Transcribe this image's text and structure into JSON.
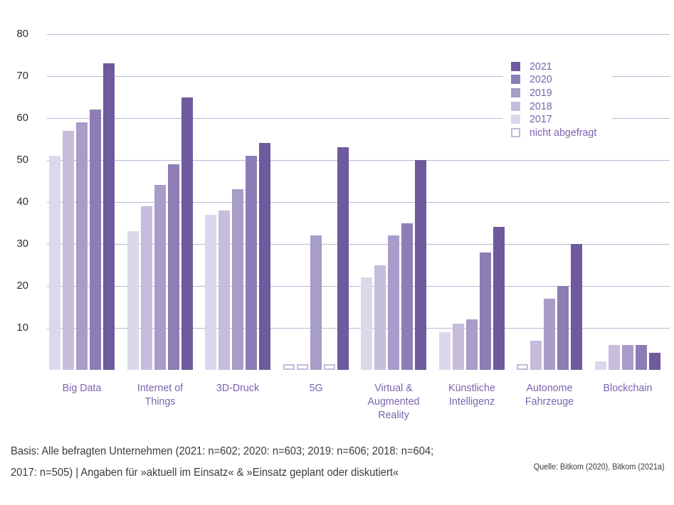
{
  "chart_data": {
    "type": "bar",
    "title": "",
    "unit": "percent",
    "ylim": [
      0,
      80
    ],
    "y_ticks": [
      10,
      20,
      30,
      40,
      50,
      60,
      70,
      80
    ],
    "grid": true,
    "legend_position": "top-right",
    "not_asked_label": "nicht abgefragt",
    "not_asked_note": "null values are rendered as small white outlined boxes (nicht abgefragt)",
    "categories": [
      {
        "id": "big-data",
        "lines": [
          "Big Data"
        ]
      },
      {
        "id": "internet-of-things",
        "lines": [
          "Internet of",
          "Things"
        ]
      },
      {
        "id": "3d-druck",
        "lines": [
          "3D-Druck"
        ]
      },
      {
        "id": "5g",
        "lines": [
          "5G"
        ]
      },
      {
        "id": "virtual-augmented-reality",
        "lines": [
          "Virtual &",
          "Augmented",
          "Reality"
        ]
      },
      {
        "id": "kuenstliche-intelligenz",
        "lines": [
          "Künstliche",
          "Intelligenz"
        ]
      },
      {
        "id": "autonome-fahrzeuge",
        "lines": [
          "Autonome",
          "Fahrzeuge"
        ]
      },
      {
        "id": "blockchain",
        "lines": [
          "Blockchain"
        ]
      }
    ],
    "series": [
      {
        "name": "2017",
        "color": "#dcd8eb",
        "values": [
          51,
          33,
          37,
          null,
          22,
          9,
          null,
          2
        ]
      },
      {
        "name": "2018",
        "color": "#c6bddd",
        "values": [
          57,
          39,
          38,
          null,
          25,
          11,
          7,
          6
        ]
      },
      {
        "name": "2019",
        "color": "#a89cc9",
        "values": [
          59,
          44,
          43,
          32,
          32,
          12,
          17,
          6
        ]
      },
      {
        "name": "2020",
        "color": "#8d7db6",
        "values": [
          62,
          49,
          51,
          null,
          35,
          28,
          20,
          6
        ]
      },
      {
        "name": "2021",
        "color": "#6e5a9d",
        "values": [
          73,
          65,
          54,
          53,
          50,
          34,
          30,
          4
        ]
      }
    ],
    "legend": [
      {
        "label": "2021",
        "color": "#6e5a9d",
        "outline": false
      },
      {
        "label": "2020",
        "color": "#8d7db6",
        "outline": false
      },
      {
        "label": "2019",
        "color": "#a89cc9",
        "outline": false
      },
      {
        "label": "2018",
        "color": "#c6bddd",
        "outline": false
      },
      {
        "label": "2017",
        "color": "#dcd8eb",
        "outline": false
      },
      {
        "label": "nicht abgefragt",
        "color": "#ffffff",
        "outline": true
      }
    ]
  },
  "colors": {
    "gridline": "#bdb7d5",
    "axis_text": "#2e2e2e",
    "category_text": "#7a64ad",
    "legend_text": "#7a64ad",
    "footer_text": "#3a3a3a",
    "not_asked_border": "#c3badb",
    "background": "#ffffff"
  },
  "footer": {
    "basis_line1": "Basis: Alle befragten Unternehmen (2021: n=602; 2020: n=603; 2019: n=606; 2018: n=604;",
    "basis_line2": "2017: n=505) | Angaben für »aktuell im Einsatz« & »Einsatz geplant oder diskutiert«",
    "source": "Quelle: Bitkom (2020), Bitkom (2021a)"
  }
}
